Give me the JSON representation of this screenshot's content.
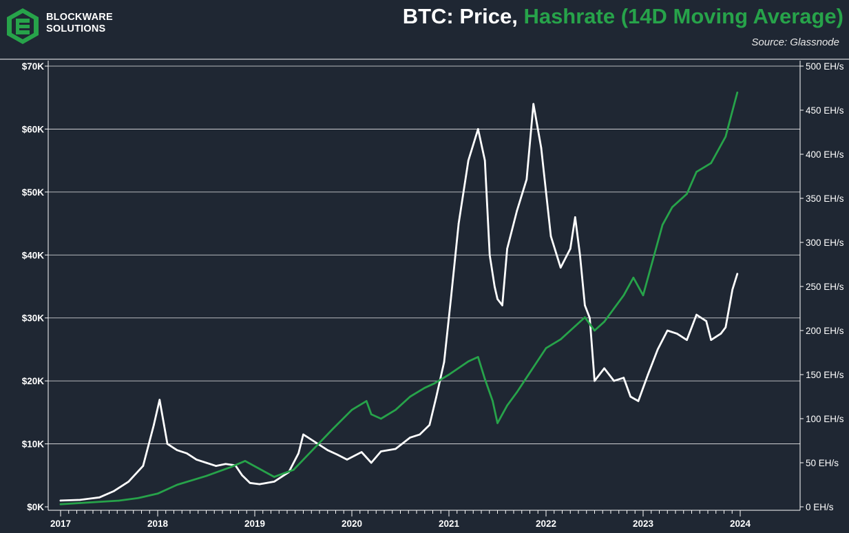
{
  "header": {
    "brand_line1": "BLOCKWARE",
    "brand_line2": "SOLUTIONS",
    "title_prefix": "BTC: Price, ",
    "title_green": "Hashrate (14D Moving Average)",
    "source": "Source: Glassnode"
  },
  "colors": {
    "background": "#1f2733",
    "price": "#ffffff",
    "hashrate": "#27a34a",
    "grid": "#ffffff"
  },
  "icons": {
    "logo": "blockware-hexagon-logo"
  },
  "chart_data": {
    "type": "line",
    "grid": true,
    "legend": "none (series named in title)",
    "x_ticks": [
      "2017",
      "2018",
      "2019",
      "2020",
      "2021",
      "2022",
      "2023",
      "2024"
    ],
    "y_left": {
      "ylim": [
        0,
        70000
      ],
      "ticks": [
        0,
        10000,
        20000,
        30000,
        40000,
        50000,
        60000,
        70000
      ],
      "tick_labels": [
        "$0K",
        "$10K",
        "$20K",
        "$30K",
        "$40K",
        "$50K",
        "$60K",
        "$70K"
      ]
    },
    "y_right": {
      "ylim": [
        0,
        500
      ],
      "ticks": [
        0,
        50,
        100,
        150,
        200,
        250,
        300,
        350,
        400,
        450,
        500
      ],
      "tick_labels": [
        "0 EH/s",
        "50 EH/s",
        "100 EH/s",
        "150 EH/s",
        "200 EH/s",
        "250 EH/s",
        "300 EH/s",
        "350 EH/s",
        "400 EH/s",
        "450 EH/s",
        "500 EH/s"
      ]
    },
    "series": [
      {
        "name": "Price",
        "axis": "left",
        "color": "#ffffff",
        "x": [
          2017.0,
          2017.2,
          2017.4,
          2017.55,
          2017.7,
          2017.85,
          2017.96,
          2018.02,
          2018.1,
          2018.2,
          2018.3,
          2018.4,
          2018.5,
          2018.6,
          2018.7,
          2018.8,
          2018.87,
          2018.95,
          2019.05,
          2019.2,
          2019.35,
          2019.45,
          2019.5,
          2019.6,
          2019.75,
          2019.85,
          2019.95,
          2020.1,
          2020.2,
          2020.3,
          2020.45,
          2020.6,
          2020.7,
          2020.8,
          2020.87,
          2020.95,
          2021.02,
          2021.1,
          2021.2,
          2021.3,
          2021.37,
          2021.42,
          2021.47,
          2021.5,
          2021.55,
          2021.6,
          2021.7,
          2021.8,
          2021.87,
          2021.95,
          2022.05,
          2022.15,
          2022.25,
          2022.3,
          2022.35,
          2022.4,
          2022.45,
          2022.5,
          2022.6,
          2022.7,
          2022.8,
          2022.87,
          2022.95,
          2023.05,
          2023.15,
          2023.25,
          2023.35,
          2023.45,
          2023.55,
          2023.65,
          2023.7,
          2023.75,
          2023.8,
          2023.85,
          2023.92,
          2023.97
        ],
        "values": [
          1000,
          1100,
          1500,
          2500,
          4000,
          6500,
          13000,
          17000,
          10000,
          9000,
          8500,
          7500,
          7000,
          6500,
          6800,
          6600,
          5000,
          3800,
          3600,
          4000,
          5500,
          8500,
          11500,
          10500,
          9000,
          8300,
          7500,
          8700,
          7000,
          8800,
          9200,
          11000,
          11500,
          13000,
          17500,
          23000,
          33000,
          45000,
          55000,
          60000,
          55000,
          40000,
          35000,
          33000,
          32000,
          41000,
          47000,
          52000,
          64000,
          57000,
          43000,
          38000,
          41000,
          46000,
          40000,
          32000,
          30000,
          20000,
          22000,
          20000,
          20500,
          17500,
          16800,
          21000,
          25000,
          28000,
          27500,
          26500,
          30500,
          29500,
          26500,
          27000,
          27500,
          28500,
          34500,
          37000
        ]
      },
      {
        "name": "Hashrate (14D Moving Average)",
        "axis": "right",
        "color": "#27a34a",
        "x": [
          2017.0,
          2017.3,
          2017.6,
          2017.8,
          2018.0,
          2018.2,
          2018.5,
          2018.75,
          2018.9,
          2019.0,
          2019.2,
          2019.4,
          2019.6,
          2019.8,
          2020.0,
          2020.15,
          2020.2,
          2020.3,
          2020.45,
          2020.6,
          2020.75,
          2020.85,
          2021.0,
          2021.2,
          2021.3,
          2021.37,
          2021.45,
          2021.5,
          2021.6,
          2021.7,
          2021.85,
          2022.0,
          2022.15,
          2022.3,
          2022.4,
          2022.5,
          2022.6,
          2022.8,
          2022.9,
          2023.0,
          2023.1,
          2023.2,
          2023.3,
          2023.45,
          2023.55,
          2023.7,
          2023.85,
          2023.97
        ],
        "values": [
          3,
          5,
          7,
          10,
          15,
          25,
          35,
          45,
          52,
          46,
          34,
          42,
          65,
          88,
          110,
          120,
          105,
          100,
          110,
          125,
          135,
          140,
          150,
          165,
          170,
          145,
          120,
          95,
          115,
          130,
          155,
          180,
          190,
          205,
          215,
          200,
          210,
          240,
          260,
          240,
          280,
          320,
          340,
          355,
          380,
          390,
          420,
          470
        ]
      }
    ]
  }
}
